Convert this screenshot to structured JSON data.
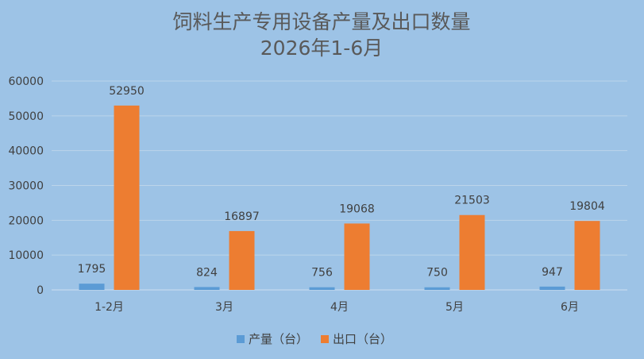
{
  "chart_data": {
    "type": "bar",
    "title": "饲料生产专用设备产量及出口数量",
    "subtitle": "2026年1-6月",
    "categories": [
      "1-2月",
      "3月",
      "4月",
      "5月",
      "6月"
    ],
    "series": [
      {
        "name": "产量（台）",
        "values": [
          1795,
          824,
          756,
          750,
          947
        ]
      },
      {
        "name": "出口（台）",
        "values": [
          52950,
          16897,
          19068,
          21503,
          19804
        ]
      }
    ],
    "ylim": [
      0,
      60000
    ],
    "yticks": [
      0,
      10000,
      20000,
      30000,
      40000,
      50000,
      60000
    ],
    "grid": true,
    "legend": "bottom",
    "colors": {
      "background": "#9dc3e6",
      "production": "#5b9bd5",
      "export": "#ed7d31",
      "grid": "#bcd4ea"
    }
  }
}
